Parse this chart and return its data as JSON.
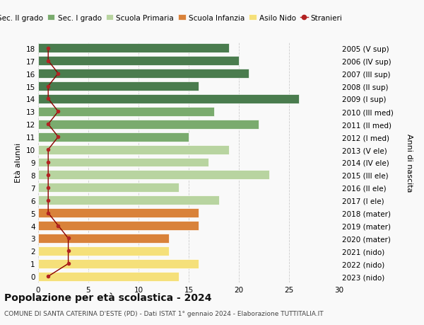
{
  "ages": [
    18,
    17,
    16,
    15,
    14,
    13,
    12,
    11,
    10,
    9,
    8,
    7,
    6,
    5,
    4,
    3,
    2,
    1,
    0
  ],
  "right_labels": [
    "2005 (V sup)",
    "2006 (IV sup)",
    "2007 (III sup)",
    "2008 (II sup)",
    "2009 (I sup)",
    "2010 (III med)",
    "2011 (II med)",
    "2012 (I med)",
    "2013 (V ele)",
    "2014 (IV ele)",
    "2015 (III ele)",
    "2016 (II ele)",
    "2017 (I ele)",
    "2018 (mater)",
    "2019 (mater)",
    "2020 (mater)",
    "2021 (nido)",
    "2022 (nido)",
    "2023 (nido)"
  ],
  "bar_values": [
    19,
    20,
    21,
    16,
    26,
    17.5,
    22,
    15,
    19,
    17,
    23,
    14,
    18,
    16,
    16,
    13,
    13,
    16,
    14
  ],
  "bar_colors": [
    "#4a7c4e",
    "#4a7c4e",
    "#4a7c4e",
    "#4a7c4e",
    "#4a7c4e",
    "#7aab6e",
    "#7aab6e",
    "#7aab6e",
    "#b8d4a0",
    "#b8d4a0",
    "#b8d4a0",
    "#b8d4a0",
    "#b8d4a0",
    "#d9823a",
    "#d9823a",
    "#d9823a",
    "#f5e07a",
    "#f5e07a",
    "#f5e07a"
  ],
  "stranieri_values": [
    1,
    1,
    2,
    1,
    1,
    2,
    1,
    2,
    1,
    1,
    1,
    1,
    1,
    1,
    2,
    3,
    3,
    3,
    1
  ],
  "legend_labels": [
    "Sec. II grado",
    "Sec. I grado",
    "Scuola Primaria",
    "Scuola Infanzia",
    "Asilo Nido",
    "Stranieri"
  ],
  "legend_colors": [
    "#4a7c4e",
    "#7aab6e",
    "#b8d4a0",
    "#d9823a",
    "#f5e07a",
    "#b22222"
  ],
  "title": "Popolazione per età scolastica - 2024",
  "subtitle": "COMUNE DI SANTA CATERINA D'ESTE (PD) - Dati ISTAT 1° gennaio 2024 - Elaborazione TUTTITALIA.IT",
  "ylabel_left": "Età alunni",
  "ylabel_right": "Anni di nascita",
  "xlim": [
    0,
    30
  ],
  "xticks": [
    0,
    5,
    10,
    15,
    20,
    25,
    30
  ],
  "background_color": "#f9f9f9",
  "grid_color": "#cccccc"
}
